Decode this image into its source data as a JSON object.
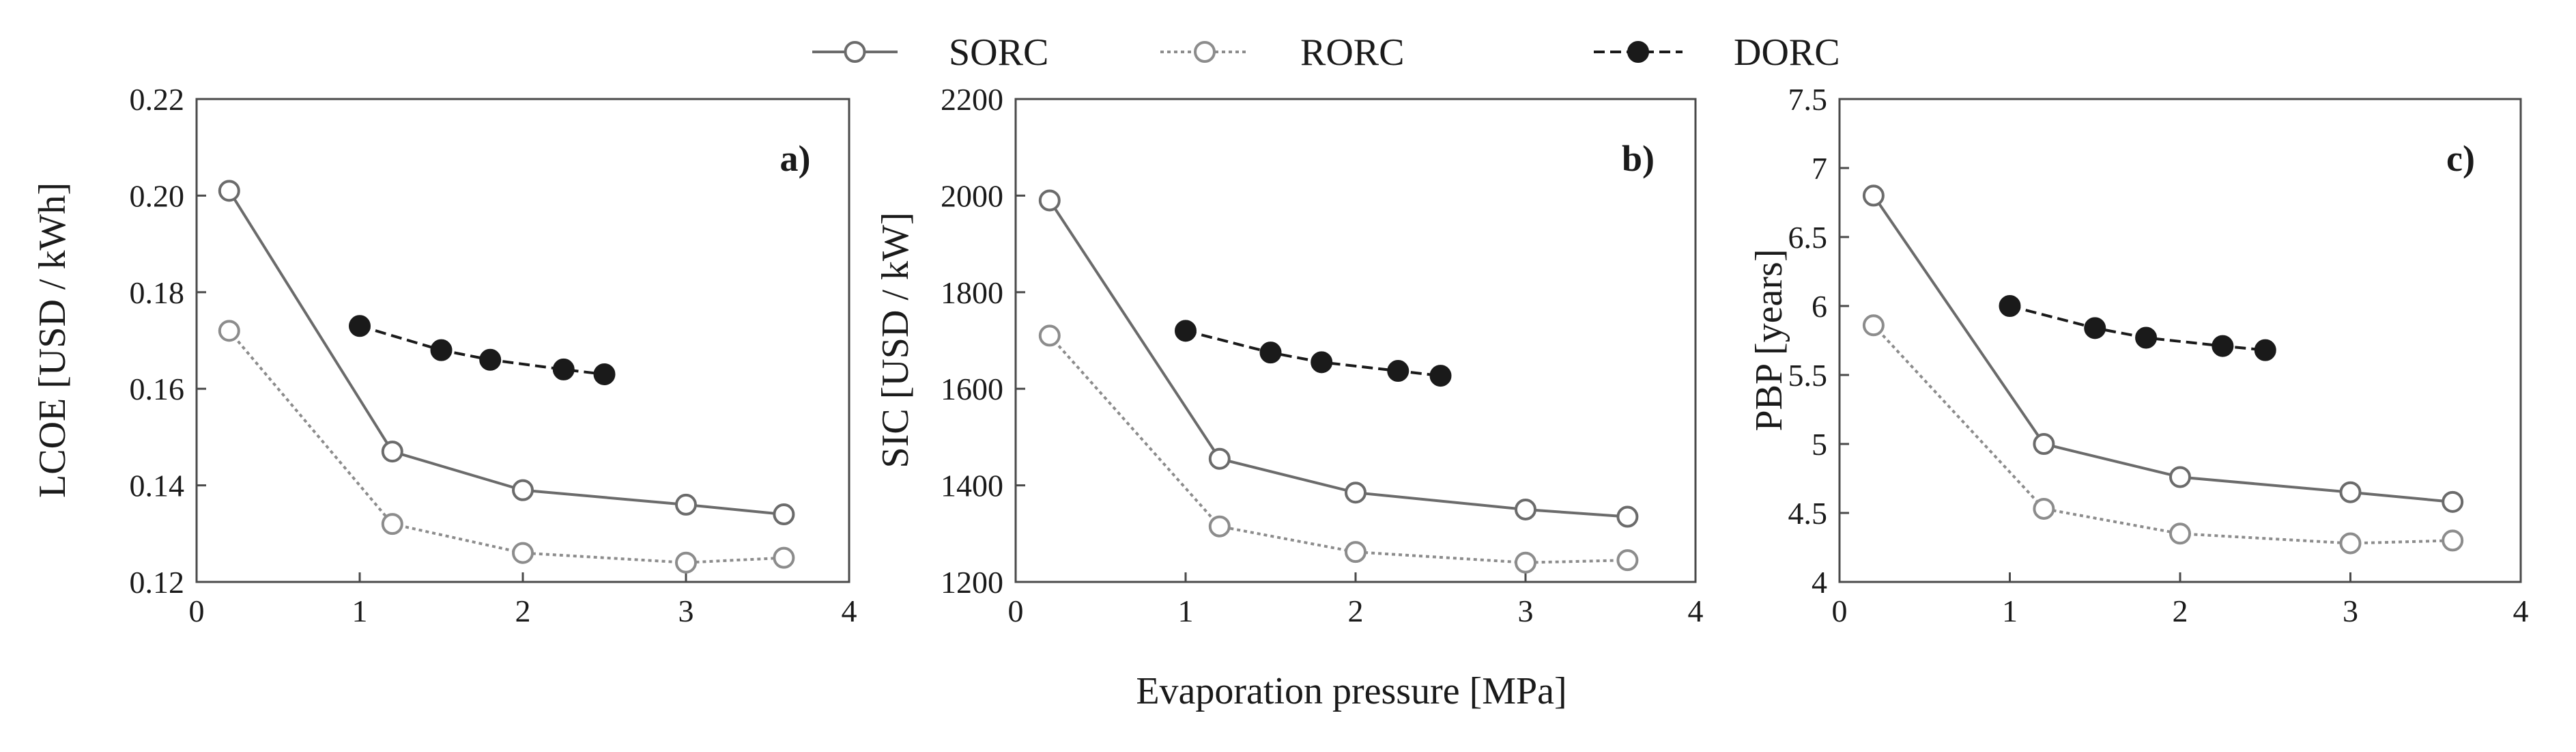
{
  "colors": {
    "sorc": "#6b6b6b",
    "rorc": "#8c8c8c",
    "dorc": "#1a1a1a",
    "axis": "#4a4a4a",
    "marker_open_fill": "#ffffff"
  },
  "x_common_label": "Evaporation pressure [MPa]",
  "legend": [
    {
      "name": "SORC",
      "marker": "open-circle",
      "line": "solid"
    },
    {
      "name": "RORC",
      "marker": "open-circle",
      "line": "dotted"
    },
    {
      "name": "DORC",
      "marker": "filled-circle",
      "line": "dashed"
    }
  ],
  "chart_data": [
    {
      "type": "line",
      "panel_label": "a)",
      "ylabel": "LCOE [USD / kWh]",
      "xlabel": "Evaporation pressure [MPa]",
      "xlim": [
        0,
        4
      ],
      "ylim": [
        0.12,
        0.22
      ],
      "xticks": [
        0,
        1,
        2,
        3,
        4
      ],
      "xtick_labels": [
        "0",
        "1",
        "2",
        "3",
        "4"
      ],
      "yticks": [
        0.12,
        0.14,
        0.16,
        0.18,
        0.2,
        0.22
      ],
      "ytick_labels": [
        "0.12",
        "0.14",
        "0.16",
        "0.18",
        "0.20",
        "0.22"
      ],
      "series": [
        {
          "name": "SORC",
          "x": [
            0.2,
            1.2,
            2.0,
            3.0,
            3.6
          ],
          "y": [
            0.201,
            0.147,
            0.139,
            0.136,
            0.134
          ]
        },
        {
          "name": "RORC",
          "x": [
            0.2,
            1.2,
            2.0,
            3.0,
            3.6
          ],
          "y": [
            0.172,
            0.132,
            0.126,
            0.124,
            0.125
          ]
        },
        {
          "name": "DORC",
          "x": [
            1.0,
            1.5,
            1.8,
            2.25,
            2.5
          ],
          "y": [
            0.173,
            0.168,
            0.166,
            0.164,
            0.163
          ]
        }
      ]
    },
    {
      "type": "line",
      "panel_label": "b)",
      "ylabel": "SIC [USD / kW]",
      "xlabel": "Evaporation pressure [MPa]",
      "xlim": [
        0,
        4
      ],
      "ylim": [
        1200,
        2200
      ],
      "xticks": [
        0,
        1,
        2,
        3,
        4
      ],
      "xtick_labels": [
        "0",
        "1",
        "2",
        "3",
        "4"
      ],
      "yticks": [
        1200,
        1400,
        1600,
        1800,
        2000,
        2200
      ],
      "ytick_labels": [
        "1200",
        "1400",
        "1600",
        "1800",
        "2000",
        "2200"
      ],
      "series": [
        {
          "name": "SORC",
          "x": [
            0.2,
            1.2,
            2.0,
            3.0,
            3.6
          ],
          "y": [
            1990,
            1455,
            1385,
            1350,
            1335
          ]
        },
        {
          "name": "RORC",
          "x": [
            0.2,
            1.2,
            2.0,
            3.0,
            3.6
          ],
          "y": [
            1710,
            1315,
            1262,
            1240,
            1245
          ]
        },
        {
          "name": "DORC",
          "x": [
            1.0,
            1.5,
            1.8,
            2.25,
            2.5
          ],
          "y": [
            1720,
            1675,
            1655,
            1637,
            1627
          ]
        }
      ]
    },
    {
      "type": "line",
      "panel_label": "c)",
      "ylabel": "PBP [years]",
      "xlabel": "Evaporation pressure [MPa]",
      "xlim": [
        0,
        4
      ],
      "ylim": [
        4,
        7.5
      ],
      "xticks": [
        0,
        1,
        2,
        3,
        4
      ],
      "xtick_labels": [
        "0",
        "1",
        "2",
        "3",
        "4"
      ],
      "yticks": [
        4,
        4.5,
        5,
        5.5,
        6,
        6.5,
        7,
        7.5
      ],
      "ytick_labels": [
        "4",
        "4.5",
        "5",
        "5.5",
        "6",
        "6.5",
        "7",
        "7.5"
      ],
      "series": [
        {
          "name": "SORC",
          "x": [
            0.2,
            1.2,
            2.0,
            3.0,
            3.6
          ],
          "y": [
            6.8,
            5.0,
            4.76,
            4.65,
            4.58
          ]
        },
        {
          "name": "RORC",
          "x": [
            0.2,
            1.2,
            2.0,
            3.0,
            3.6
          ],
          "y": [
            5.86,
            4.53,
            4.35,
            4.28,
            4.3
          ]
        },
        {
          "name": "DORC",
          "x": [
            1.0,
            1.5,
            1.8,
            2.25,
            2.5
          ],
          "y": [
            6.0,
            5.84,
            5.77,
            5.71,
            5.68
          ]
        }
      ]
    }
  ]
}
